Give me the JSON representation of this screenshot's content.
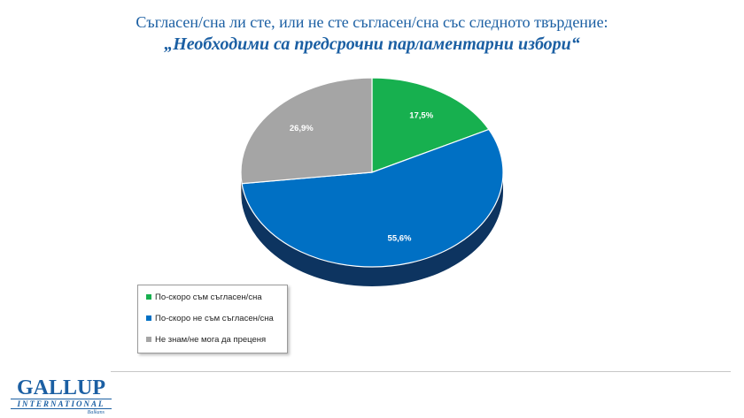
{
  "chart_data": {
    "type": "pie",
    "title": "Съгласен/сна ли сте, или не сте съгласен/сна със следното твърдение:",
    "subtitle": "„Необходими са предсрочни парламентарни избори“",
    "slices": [
      {
        "name": "По-скоро съм съгласен/сна",
        "value": 17.5,
        "label": "17,5%",
        "color": "#17b04f",
        "dark": "#0e7a36"
      },
      {
        "name": "По-скоро не съм съгласен/сна",
        "value": 55.6,
        "label": "55,6%",
        "color": "#0070c4",
        "dark": "#0d3460"
      },
      {
        "name": "Не знам/не мога да преценя",
        "value": 26.9,
        "label": "26,9%",
        "color": "#a5a5a5",
        "dark": "#6e6e6e"
      }
    ],
    "start": "top, clockwise",
    "legend_position": "bottom-left"
  },
  "logo": {
    "line1": "GALLUP",
    "line2": "INTERNATIONAL",
    "line3": "Balkans"
  }
}
